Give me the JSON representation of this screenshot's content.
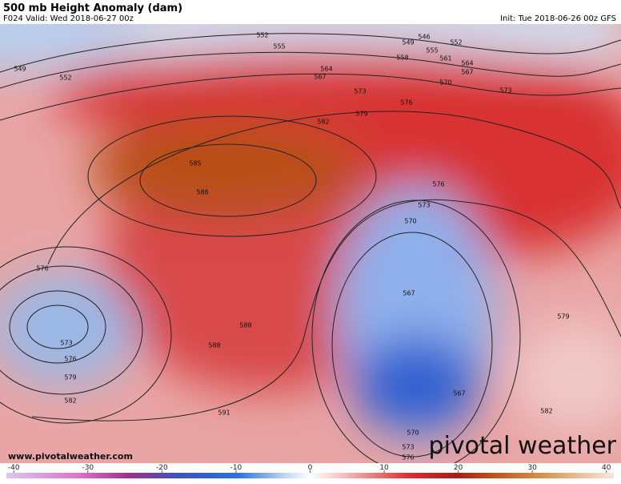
{
  "header": {
    "title": "500 mb Height Anomaly (dam)",
    "valid": "F024 Valid: Wed 2018-06-27 00z",
    "init": "Init: Tue 2018-06-26 00z GFS"
  },
  "contour_labels": [
    "552",
    "555",
    "549",
    "552",
    "549",
    "546",
    "552",
    "555",
    "558",
    "561",
    "564",
    "567",
    "564",
    "567",
    "570",
    "573",
    "573",
    "576",
    "579",
    "582",
    "585",
    "588",
    "576",
    "573",
    "570",
    "576",
    "567",
    "579",
    "588",
    "588",
    "573",
    "576",
    "579",
    "582",
    "591",
    "567",
    "582",
    "570",
    "573",
    "576"
  ],
  "footer": {
    "website": "www.pivotalweather.com",
    "logo": "pivotal weather"
  },
  "colorbar": {
    "range": [
      -41,
      41
    ],
    "ticks": [
      -40,
      -30,
      -20,
      -10,
      0,
      10,
      20,
      30,
      40
    ]
  }
}
